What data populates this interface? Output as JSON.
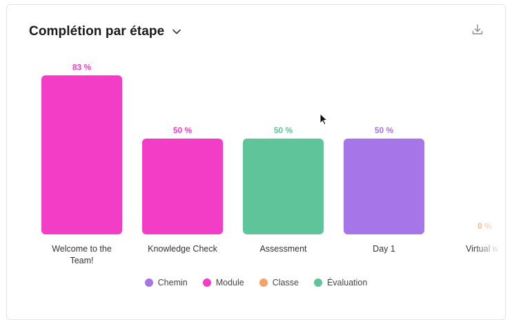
{
  "header": {
    "title": "Complétion par étape"
  },
  "icons": {
    "dropdown": "chevron-down-icon",
    "download": "download-icon"
  },
  "colors": {
    "chemin": "#a675e8",
    "module": "#f43dc6",
    "classe": "#f6a166",
    "evaluation": "#5fc49a"
  },
  "chart_data": {
    "type": "bar",
    "title": "Complétion par étape",
    "categories": [
      "Welcome to the Team!",
      "Knowledge Check",
      "Assessment",
      "Day 1",
      "Virtual wo"
    ],
    "category_lines": [
      [
        "Welcome to the",
        "Team!"
      ],
      [
        "Knowledge Check"
      ],
      [
        "Assessment"
      ],
      [
        "Day 1"
      ],
      [
        "Virtual wo"
      ]
    ],
    "values": [
      83,
      50,
      50,
      50,
      0
    ],
    "value_labels": [
      "83 %",
      "50 %",
      "50 %",
      "50 %",
      "0 %"
    ],
    "types": [
      "module",
      "module",
      "evaluation",
      "chemin",
      "classe"
    ],
    "ylim": [
      0,
      100
    ],
    "grid": false,
    "legend_position": "bottom",
    "legend": [
      {
        "key": "chemin",
        "label": "Chemin"
      },
      {
        "key": "module",
        "label": "Module"
      },
      {
        "key": "classe",
        "label": "Classe"
      },
      {
        "key": "evaluation",
        "label": "Évaluation"
      }
    ]
  }
}
